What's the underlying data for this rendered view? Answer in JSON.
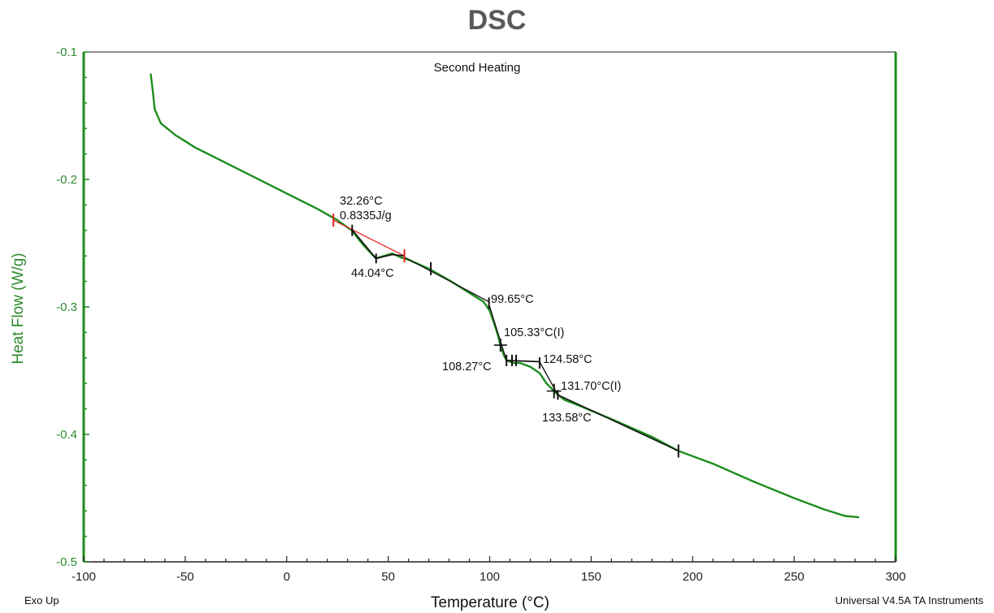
{
  "title": "DSC",
  "chart_data": {
    "type": "line",
    "title": "DSC",
    "subtitle": "Second Heating",
    "xlabel": "Temperature (°C)",
    "ylabel": "Heat Flow (W/g)",
    "xlim": [
      -100,
      300
    ],
    "ylim": [
      -0.5,
      -0.1
    ],
    "grid": false,
    "xticks": [
      -100,
      -50,
      0,
      50,
      100,
      150,
      200,
      250,
      300
    ],
    "yticks": [
      -0.1,
      -0.2,
      -0.3,
      -0.4,
      -0.5
    ],
    "xtick_labels": [
      "-100",
      "-50",
      "0",
      "50",
      "100",
      "150",
      "200",
      "250",
      "300"
    ],
    "ytick_labels": [
      "-0.1",
      "-0.2",
      "-0.3",
      "-0.4",
      "-0.5"
    ],
    "series": [
      {
        "color": "#1e8c1e",
        "x": [
          -67,
          -66,
          -65,
          -62,
          -55,
          -45,
          -30,
          -15,
          0,
          15,
          25,
          32,
          38,
          44,
          48,
          52,
          56,
          60,
          70,
          80,
          90,
          97,
          100,
          102,
          104,
          105.3,
          107,
          108.3,
          110,
          112,
          115,
          120,
          124.6,
          128,
          131.7,
          133.6,
          137,
          145,
          160,
          180,
          193,
          210,
          230,
          250,
          265,
          275,
          282
        ],
        "y": [
          -0.117,
          -0.13,
          -0.145,
          -0.156,
          -0.165,
          -0.175,
          -0.187,
          -0.199,
          -0.211,
          -0.223,
          -0.232,
          -0.24,
          -0.252,
          -0.262,
          -0.26,
          -0.258,
          -0.261,
          -0.263,
          -0.27,
          -0.279,
          -0.289,
          -0.296,
          -0.303,
          -0.312,
          -0.322,
          -0.33,
          -0.338,
          -0.342,
          -0.343,
          -0.344,
          -0.344,
          -0.347,
          -0.352,
          -0.36,
          -0.366,
          -0.369,
          -0.373,
          -0.378,
          -0.388,
          -0.402,
          -0.413,
          -0.423,
          -0.437,
          -0.45,
          -0.459,
          -0.464,
          -0.465
        ]
      }
    ],
    "annotations": [
      {
        "text": "32.26°C",
        "x": 32.26
      },
      {
        "text": "0.8335J/g"
      },
      {
        "text": "44.04°C",
        "x": 44.04
      },
      {
        "text": "99.65°C",
        "x": 99.65
      },
      {
        "text": "105.33°C(I)",
        "x": 105.33
      },
      {
        "text": "108.27°C",
        "x": 108.27
      },
      {
        "text": "124.58°C",
        "x": 124.58
      },
      {
        "text": "131.70°C(I)",
        "x": 131.7
      },
      {
        "text": "133.58°C",
        "x": 133.58
      }
    ],
    "footer_left": "Exo Up",
    "footer_right": "Universal V4.5A TA Instruments"
  }
}
